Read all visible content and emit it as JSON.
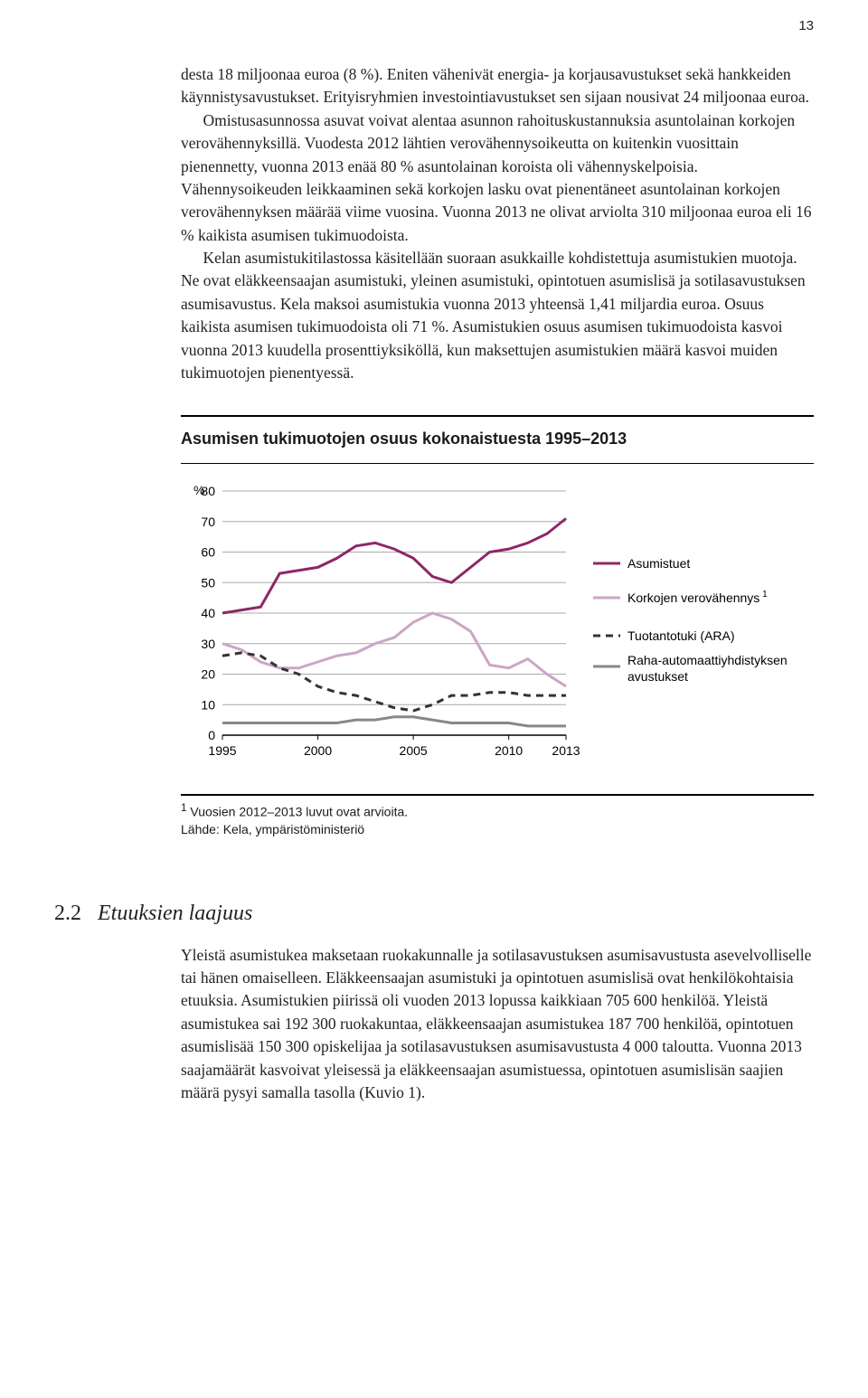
{
  "page_number": "13",
  "body": {
    "p1": "desta 18 miljoonaa euroa (8 %). Eniten vähenivät energia- ja korjausavustukset sekä hankkeiden käynnistysavustukset. Erityisryhmien investointiavustukset sen sijaan nousivat 24 miljoonaa euroa.",
    "p2": "Omistusasunnossa asuvat voivat alentaa asunnon rahoituskustannuksia asuntolainan korkojen verovähennyksillä. Vuodesta 2012 lähtien verovähennysoikeutta on kuitenkin vuosittain pienennetty, vuonna 2013 enää 80 % asuntolainan koroista oli vähennyskelpoisia. Vähennysoikeuden leikkaaminen sekä korkojen lasku ovat pienentäneet asuntolainan korkojen verovähennyksen määrää viime vuosina. Vuonna 2013 ne olivat arviolta 310 miljoonaa euroa eli 16 % kaikista asumisen tukimuodoista.",
    "p3": "Kelan asumistukitilastossa käsitellään suoraan asukkaille kohdistettuja asumistukien muotoja. Ne ovat eläkkeensaajan asumistuki, yleinen asumistuki, opintotuen asumislisä ja sotilasavustuksen asumisavustus. Kela maksoi asumistukia vuonna 2013 yhteensä 1,41 miljardia euroa. Osuus kaikista asumisen tukimuodoista oli 71 %. Asumistukien osuus asumisen tukimuodoista kasvoi vuonna 2013 kuudella prosenttiyksiköllä, kun maksettujen asumistukien määrä kasvoi muiden tukimuotojen pienentyessä."
  },
  "chart": {
    "type": "line",
    "title": "Asumisen tukimuotojen osuus kokonaistuesta 1995–2013",
    "y_unit_label": "%",
    "background_color": "#ffffff",
    "grid_color": "#aaaaaa",
    "axis_color": "#000000",
    "xlim": [
      1995,
      2013
    ],
    "ylim": [
      0,
      80
    ],
    "ytick_step": 10,
    "xticks": [
      1995,
      2000,
      2005,
      2010,
      2013
    ],
    "label_fontsize": 14,
    "title_fontsize": 18,
    "line_width": 3,
    "dash_pattern": "8 6",
    "series": [
      {
        "name": "Asumistuet",
        "color": "#8d2768",
        "style": "solid",
        "values": [
          [
            1995,
            40
          ],
          [
            1996,
            41
          ],
          [
            1997,
            42
          ],
          [
            1998,
            53
          ],
          [
            1999,
            54
          ],
          [
            2000,
            55
          ],
          [
            2001,
            58
          ],
          [
            2002,
            62
          ],
          [
            2003,
            63
          ],
          [
            2004,
            61
          ],
          [
            2005,
            58
          ],
          [
            2006,
            52
          ],
          [
            2007,
            50
          ],
          [
            2008,
            55
          ],
          [
            2009,
            60
          ],
          [
            2010,
            61
          ],
          [
            2011,
            63
          ],
          [
            2012,
            66
          ],
          [
            2013,
            71
          ]
        ]
      },
      {
        "name": "Korkojen verovähennys",
        "color": "#caa6c6",
        "style": "solid",
        "superscript": "1",
        "values": [
          [
            1995,
            30
          ],
          [
            1996,
            28
          ],
          [
            1997,
            24
          ],
          [
            1998,
            22
          ],
          [
            1999,
            22
          ],
          [
            2000,
            24
          ],
          [
            2001,
            26
          ],
          [
            2002,
            27
          ],
          [
            2003,
            30
          ],
          [
            2004,
            32
          ],
          [
            2005,
            37
          ],
          [
            2006,
            40
          ],
          [
            2007,
            38
          ],
          [
            2008,
            34
          ],
          [
            2009,
            23
          ],
          [
            2010,
            22
          ],
          [
            2011,
            25
          ],
          [
            2012,
            20
          ],
          [
            2013,
            16
          ]
        ]
      },
      {
        "name": "Tuotantotuki (ARA)",
        "color": "#333333",
        "style": "dashed",
        "values": [
          [
            1995,
            26
          ],
          [
            1996,
            27
          ],
          [
            1997,
            26
          ],
          [
            1998,
            22
          ],
          [
            1999,
            20
          ],
          [
            2000,
            16
          ],
          [
            2001,
            14
          ],
          [
            2002,
            13
          ],
          [
            2003,
            11
          ],
          [
            2004,
            9
          ],
          [
            2005,
            8
          ],
          [
            2006,
            10
          ],
          [
            2007,
            13
          ],
          [
            2008,
            13
          ],
          [
            2009,
            14
          ],
          [
            2010,
            14
          ],
          [
            2011,
            13
          ],
          [
            2012,
            13
          ],
          [
            2013,
            13
          ]
        ]
      },
      {
        "name": "Raha-automaattiyhdistyksen avustukset",
        "color": "#888888",
        "style": "solid",
        "values": [
          [
            1995,
            4
          ],
          [
            1996,
            4
          ],
          [
            1997,
            4
          ],
          [
            1998,
            4
          ],
          [
            1999,
            4
          ],
          [
            2000,
            4
          ],
          [
            2001,
            4
          ],
          [
            2002,
            5
          ],
          [
            2003,
            5
          ],
          [
            2004,
            6
          ],
          [
            2005,
            6
          ],
          [
            2006,
            5
          ],
          [
            2007,
            4
          ],
          [
            2008,
            4
          ],
          [
            2009,
            4
          ],
          [
            2010,
            4
          ],
          [
            2011,
            3
          ],
          [
            2012,
            3
          ],
          [
            2013,
            3
          ]
        ]
      }
    ],
    "footnote1": "Vuosien 2012–2013 luvut ovat arvioita.",
    "footnote2": "Lähde: Kela, ympäristöministeriö"
  },
  "section": {
    "number": "2.2",
    "title": "Etuuksien laajuus",
    "body": "Yleistä asumistukea maksetaan ruokakunnalle ja sotilasavustuksen asumisavustusta asevelvolliselle tai hänen omaiselleen. Eläkkeensaajan asumistuki ja opintotuen asumislisä ovat henkilökohtaisia etuuksia. Asumistukien piirissä oli vuoden 2013 lopussa kaikkiaan 705 600 henkilöä. Yleistä asumistukea sai 192 300 ruokakuntaa, eläkkeensaajan asumistukea 187 700 henkilöä, opintotuen asumislisää 150 300 opiskelijaa ja sotilasavustuksen asumisavustusta 4 000 taloutta. Vuonna 2013 saajamäärät kasvoivat yleisessä ja eläkkeensaajan asumistuessa, opintotuen asumislisän saajien määrä pysyi samalla tasolla (Kuvio 1)."
  }
}
